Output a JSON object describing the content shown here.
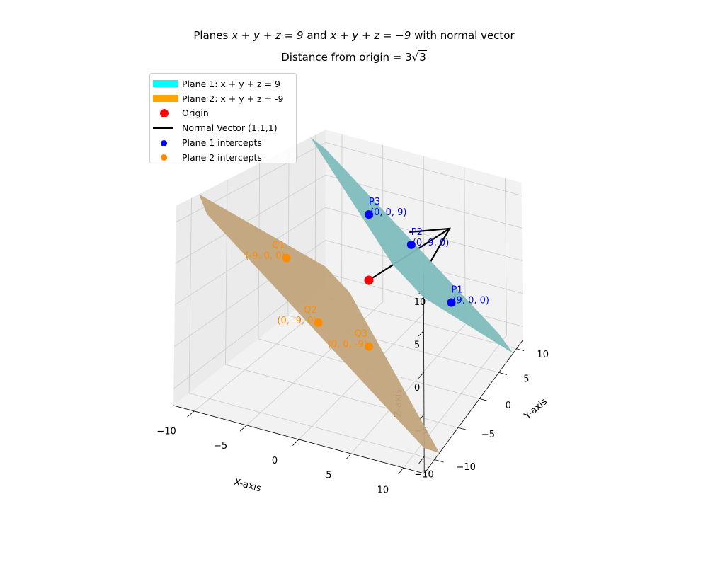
{
  "chart_data": {
    "type": "3d-surface",
    "title_line1_pre": "Planes ",
    "title_line1_math1": "x + y + z = 9",
    "title_line1_mid": " and ",
    "title_line1_math2": "x + y + z = −9",
    "title_line1_post": " with normal vector",
    "title_line2_pre": "Distance from origin = 3",
    "title_line2_root": "3",
    "xlabel": "X-axis",
    "ylabel": "Y-axis",
    "zlabel": "Z-axis",
    "xlim": [
      -12,
      12
    ],
    "ylim": [
      -12,
      12
    ],
    "zlim": [
      -12,
      12
    ],
    "xticks": [
      -10,
      -5,
      0,
      5,
      10
    ],
    "yticks": [
      -10,
      -5,
      0,
      5,
      10
    ],
    "zticks": [
      -10,
      -5,
      0,
      5,
      10
    ],
    "xtick_labels": [
      "−10",
      "−5",
      "0",
      "5",
      "10"
    ],
    "ytick_labels": [
      "−10",
      "−5",
      "0",
      "5",
      "10"
    ],
    "ztick_labels": [
      "−10",
      "−5",
      "0",
      "5",
      "10"
    ],
    "grid": true,
    "legend_position": "upper-left",
    "planes": [
      {
        "name": "Plane 1: x + y + z = 9",
        "d": 9,
        "surface_color": "#7fbcbc",
        "legend_color": "#00ffff"
      },
      {
        "name": "Plane 2: x + y + z = -9",
        "d": -9,
        "surface_color": "#c2a47c",
        "legend_color": "#ffa500"
      }
    ],
    "origin": {
      "name": "Origin",
      "x": 0,
      "y": 0,
      "z": 0,
      "color": "#ff0000"
    },
    "normal_vector": {
      "name": "Normal Vector (1,1,1)",
      "from": [
        0,
        0,
        0
      ],
      "to": [
        6,
        6,
        6
      ],
      "color": "#000000"
    },
    "intercept_groups": [
      {
        "name": "Plane 1 intercepts",
        "color": "#0000ff",
        "label_color": "#0000ff",
        "points": [
          {
            "label": "P1",
            "coords": "(9, 0, 0)",
            "x": 9,
            "y": 0,
            "z": 0
          },
          {
            "label": "P2",
            "coords": "(0, 9, 0)",
            "x": 0,
            "y": 9,
            "z": 0
          },
          {
            "label": "P3",
            "coords": "(0, 0, 9)",
            "x": 0,
            "y": 0,
            "z": 9
          }
        ]
      },
      {
        "name": "Plane 2 intercepts",
        "color": "#ff8c00",
        "label_color": "#ff8c00",
        "points": [
          {
            "label": "Q1",
            "coords": "(-9, 0, 0)",
            "x": -9,
            "y": 0,
            "z": 0
          },
          {
            "label": "Q2",
            "coords": "(0, -9, 0)",
            "x": 0,
            "y": -9,
            "z": 0
          },
          {
            "label": "Q3",
            "coords": "(0, 0, -9)",
            "x": 0,
            "y": 0,
            "z": -9
          }
        ]
      }
    ]
  }
}
